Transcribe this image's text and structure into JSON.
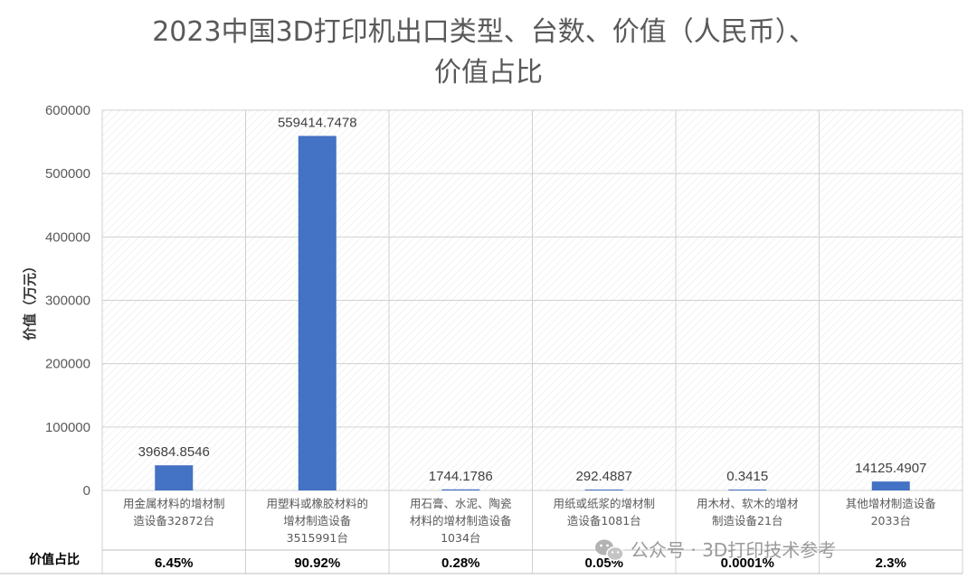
{
  "chart_data": {
    "type": "bar",
    "title": [
      "2023中国3D打印机出口类型、台数、价值（人民币）、",
      "价值占比"
    ],
    "ylabel": "价值（万元）",
    "ylim": [
      0,
      600000
    ],
    "yticks": [
      0,
      100000,
      200000,
      300000,
      400000,
      500000,
      600000
    ],
    "grid": true,
    "bar_color": "#4472C4",
    "categories": [
      [
        "用金属材料的增材制",
        "造设备32872台"
      ],
      [
        "用塑料或橡胶材料的",
        "增材制造设备",
        "3515991台"
      ],
      [
        "用石膏、水泥、陶瓷",
        "材料的增材制造设备",
        "1034台"
      ],
      [
        "用纸或纸浆的增材制",
        "造设备1081台"
      ],
      [
        "用木材、软木的增材",
        "制造设备21台"
      ],
      [
        "其他增材制造设备",
        "2033台"
      ]
    ],
    "values": [
      39684.8546,
      559414.7478,
      1744.1786,
      292.4887,
      0.3415,
      14125.4907
    ],
    "data_labels": [
      "39684.8546",
      "559414.7478",
      "1744.1786",
      "292.4887",
      "0.3415",
      "14125.4907"
    ],
    "share_row_title": "价值占比",
    "shares": [
      "6.45%",
      "90.92%",
      "0.28%",
      "0.05%",
      "0.0001%",
      "2.3%"
    ]
  },
  "watermark": {
    "icon": "wechat-icon",
    "text": "公众号 · 3D打印技术参考"
  }
}
